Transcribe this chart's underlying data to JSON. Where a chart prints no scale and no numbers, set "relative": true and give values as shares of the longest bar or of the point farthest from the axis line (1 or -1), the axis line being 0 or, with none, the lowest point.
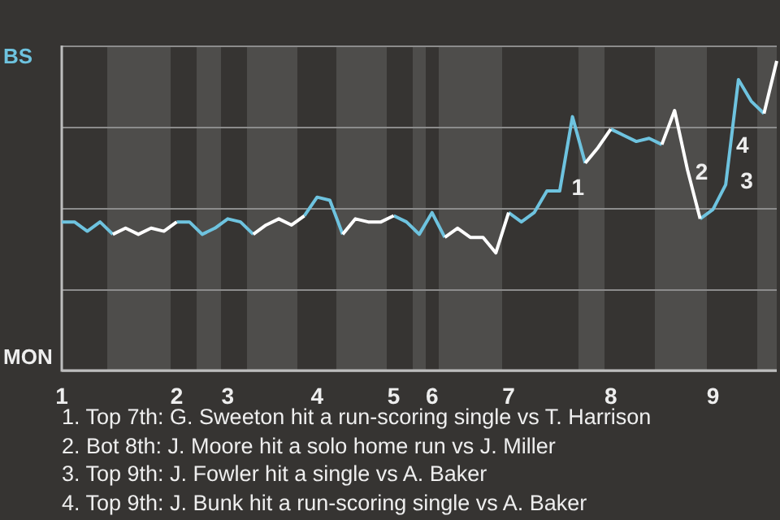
{
  "chart_data": {
    "type": "line",
    "relative": true,
    "grid": "y",
    "legend": false,
    "marker": "none",
    "line_style": "solid",
    "categories": [
      "1",
      null,
      null,
      null,
      null,
      null,
      null,
      null,
      null,
      "2",
      null,
      null,
      null,
      "3",
      null,
      null,
      null,
      null,
      null,
      null,
      "4",
      null,
      null,
      null,
      null,
      null,
      "5",
      null,
      null,
      "6",
      null,
      null,
      null,
      null,
      null,
      "7",
      null,
      null,
      null,
      null,
      null,
      null,
      null,
      "8",
      null,
      null,
      null,
      null,
      null,
      null,
      null,
      "9",
      null,
      null,
      null,
      null,
      null
    ],
    "series": [
      {
        "color": "#6ec3df",
        "values": [
          0.48,
          0.48,
          0.45,
          0.48,
          0.44,
          null,
          null,
          null,
          null,
          0.48,
          0.48,
          0.44,
          0.46,
          0.49,
          0.48,
          0.44,
          null,
          null,
          null,
          0.5,
          0.56,
          0.55,
          0.44,
          null,
          null,
          null,
          0.5,
          0.48,
          0.44,
          0.51,
          0.43,
          null,
          null,
          null,
          null,
          0.51,
          0.48,
          0.51,
          0.58,
          0.58,
          0.82,
          0.67,
          null,
          0.78,
          0.76,
          0.74,
          0.75,
          0.73,
          null,
          null,
          0.49,
          0.52,
          0.6,
          0.94,
          0.87,
          0.83,
          null
        ]
      },
      {
        "color": "#ffffff",
        "values": [
          null,
          null,
          null,
          null,
          0.44,
          0.46,
          0.44,
          0.46,
          0.45,
          0.48,
          null,
          null,
          null,
          null,
          null,
          0.44,
          0.47,
          0.49,
          0.47,
          0.5,
          null,
          null,
          0.44,
          0.49,
          0.48,
          0.48,
          0.5,
          null,
          null,
          null,
          0.43,
          0.46,
          0.43,
          0.43,
          0.38,
          0.51,
          null,
          null,
          null,
          null,
          null,
          0.67,
          0.72,
          0.78,
          null,
          null,
          null,
          0.73,
          0.84,
          0.65,
          0.49,
          null,
          null,
          null,
          null,
          0.83,
          1
        ]
      }
    ],
    "annotations": [
      "BS",
      "MON",
      "1",
      "2",
      "3",
      "4",
      "1. Top 7th: G. Sweeton hit a run-scoring single vs T. Harrison",
      "2. Bot 8th: J. Moore hit a solo home run vs J. Miller",
      "3. Top 9th: J. Fowler hit a single vs A. Baker",
      "4. Top 9th: J. Bunk hit a run-scoring single vs A. Baker"
    ]
  }
}
